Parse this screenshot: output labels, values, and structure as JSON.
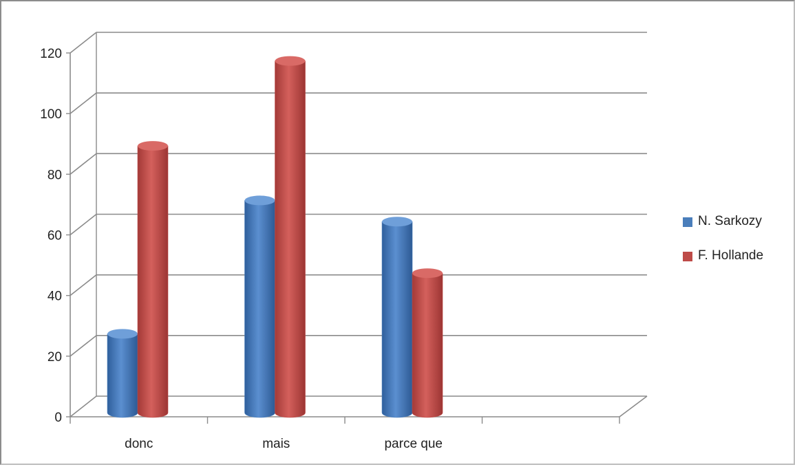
{
  "chart_data": {
    "type": "bar",
    "style": "3d-cylinder",
    "categories": [
      "donc",
      "mais",
      "parce que",
      ""
    ],
    "series": [
      {
        "name": "N. Sarkozy",
        "color": "#4a7ebb",
        "values": [
          26,
          70,
          63,
          null
        ]
      },
      {
        "name": "F. Hollande",
        "color": "#be4b48",
        "values": [
          88,
          116,
          46,
          null
        ]
      }
    ],
    "ylim": [
      0,
      120
    ],
    "yticks": [
      0,
      20,
      40,
      60,
      80,
      100,
      120
    ],
    "title": "",
    "xlabel": "",
    "ylabel": "",
    "grid": true,
    "legend_position": "right"
  }
}
